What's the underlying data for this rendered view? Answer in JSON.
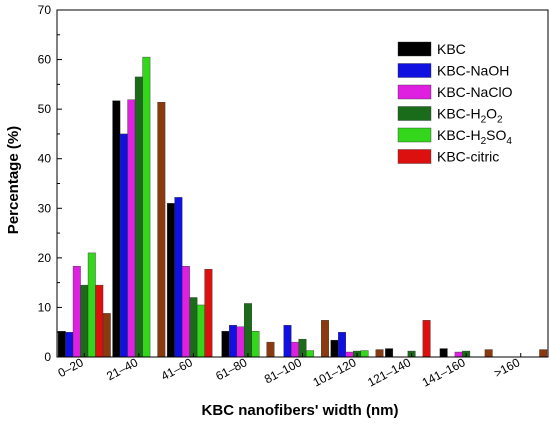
{
  "chart_data": {
    "type": "bar",
    "xlabel": "KBC nanofibers' width (nm)",
    "ylabel": "Percentage (%)",
    "ylim": [
      0,
      70
    ],
    "yticks": [
      0,
      10,
      20,
      30,
      40,
      50,
      60,
      70
    ],
    "categories": [
      "0–20",
      "21–40",
      "41–60",
      "61–80",
      "81–100",
      "101–120",
      "121–140",
      "141–160",
      ">160"
    ],
    "legend_position": "top-right",
    "grid": false,
    "series": [
      {
        "name": "KBC",
        "base": "KBC",
        "sub": "",
        "color": "#000000",
        "values": [
          5.2,
          51.7,
          31.0,
          5.2,
          0,
          3.4,
          1.7,
          1.7,
          0
        ]
      },
      {
        "name": "KBC-NaOH",
        "base": "KBC-NaOH",
        "sub": "",
        "color": "#1010e0",
        "values": [
          5.0,
          45.0,
          32.2,
          6.4,
          6.4,
          5.0,
          0,
          0,
          0
        ]
      },
      {
        "name": "KBC-NaClO",
        "base": "KBC-NaClO",
        "sub": "",
        "color": "#e020e0",
        "values": [
          18.3,
          51.9,
          18.3,
          6.1,
          3.0,
          1.0,
          0,
          1.0,
          0
        ]
      },
      {
        "name": "KBC-H2O2",
        "base": "KBC-H",
        "sub": "2",
        "base2": "O",
        "sub2": "2",
        "color": "#1a6b1a",
        "values": [
          14.5,
          56.5,
          12.0,
          10.8,
          3.6,
          1.2,
          1.2,
          1.2,
          0
        ]
      },
      {
        "name": "KBC-H2SO4",
        "base": "KBC-H",
        "sub": "2",
        "base2": "SO",
        "sub2": "4",
        "color": "#33d61a",
        "values": [
          21.0,
          60.5,
          10.5,
          5.2,
          1.3,
          1.3,
          0,
          0,
          0
        ]
      },
      {
        "name": "KBC-citric",
        "base": "KBC-citric",
        "sub": "",
        "color": "#dd1010",
        "values": [
          14.5,
          0,
          17.7,
          0,
          0,
          0,
          7.4,
          0,
          0
        ]
      },
      {
        "name": "",
        "base": "",
        "sub": "",
        "color": "#8b3a10",
        "values": [
          8.8,
          51.4,
          0,
          3.0,
          7.4,
          1.5,
          0,
          1.5,
          1.5
        ]
      }
    ]
  }
}
